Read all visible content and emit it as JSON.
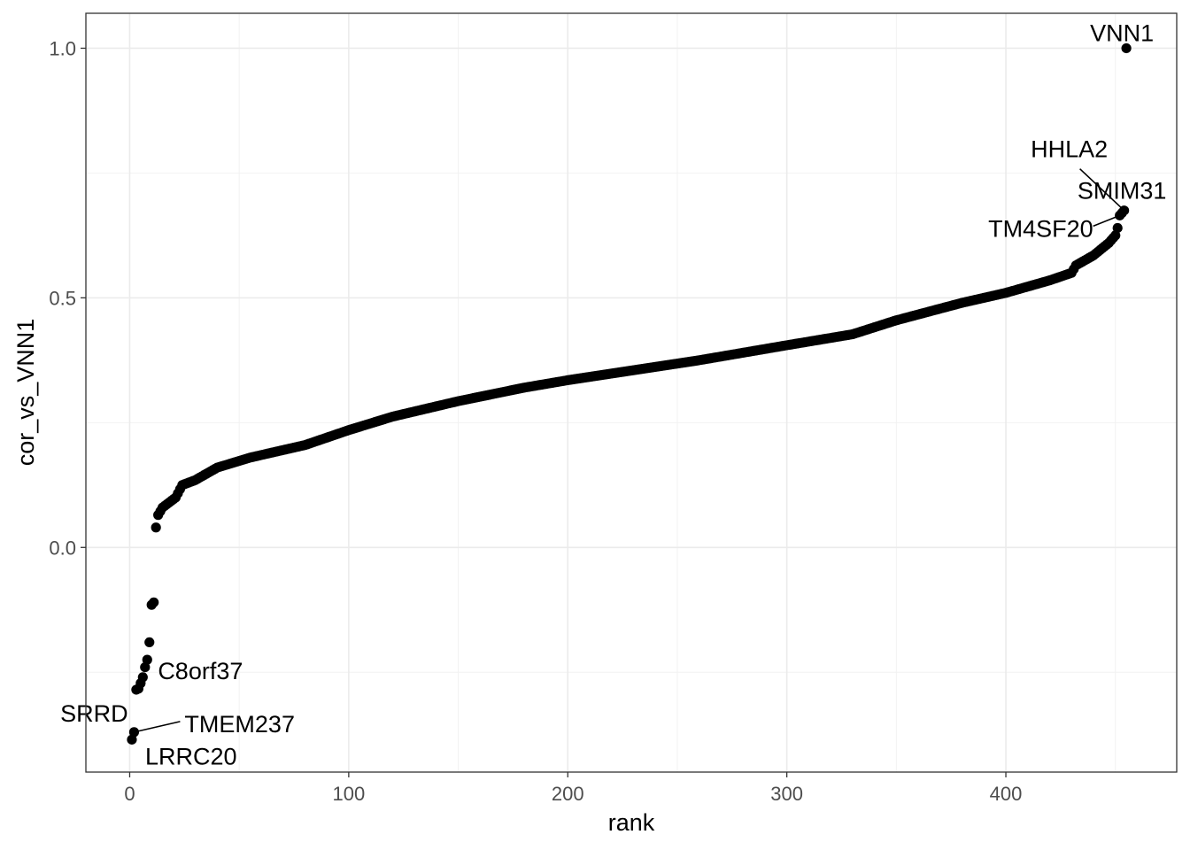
{
  "chart_data": {
    "type": "scatter",
    "title": "",
    "xlabel": "rank",
    "ylabel": "cor_vs_VNN1",
    "xlim": [
      -20,
      478
    ],
    "ylim": [
      -0.45,
      1.07
    ],
    "x_ticks": [
      0,
      100,
      200,
      300,
      400
    ],
    "x_tick_labels": [
      "0",
      "100",
      "200",
      "300",
      "400"
    ],
    "y_ticks": [
      0.0,
      0.5,
      1.0
    ],
    "y_tick_labels": [
      "0.0",
      "0.5",
      "1.0"
    ],
    "grid": true,
    "legend": "none",
    "point_color": "#000000",
    "n_points": 455,
    "low_points": [
      {
        "x": 1,
        "y": -0.385
      },
      {
        "x": 2,
        "y": -0.37
      },
      {
        "x": 3,
        "y": -0.285
      },
      {
        "x": 4,
        "y": -0.283
      },
      {
        "x": 5,
        "y": -0.272
      },
      {
        "x": 6,
        "y": -0.26
      },
      {
        "x": 7,
        "y": -0.24
      },
      {
        "x": 8,
        "y": -0.225
      },
      {
        "x": 9,
        "y": -0.19
      },
      {
        "x": 10,
        "y": -0.115
      },
      {
        "x": 11,
        "y": -0.11
      },
      {
        "x": 12,
        "y": 0.04
      }
    ],
    "curve_knots": [
      {
        "x": 12,
        "y": 0.04
      },
      {
        "x": 13,
        "y": 0.065
      },
      {
        "x": 15,
        "y": 0.08
      },
      {
        "x": 18,
        "y": 0.09
      },
      {
        "x": 21,
        "y": 0.1
      },
      {
        "x": 24,
        "y": 0.125
      },
      {
        "x": 30,
        "y": 0.135
      },
      {
        "x": 40,
        "y": 0.16
      },
      {
        "x": 55,
        "y": 0.18
      },
      {
        "x": 80,
        "y": 0.205
      },
      {
        "x": 100,
        "y": 0.235
      },
      {
        "x": 120,
        "y": 0.262
      },
      {
        "x": 150,
        "y": 0.293
      },
      {
        "x": 180,
        "y": 0.32
      },
      {
        "x": 200,
        "y": 0.335
      },
      {
        "x": 230,
        "y": 0.355
      },
      {
        "x": 260,
        "y": 0.375
      },
      {
        "x": 300,
        "y": 0.405
      },
      {
        "x": 330,
        "y": 0.427
      },
      {
        "x": 350,
        "y": 0.455
      },
      {
        "x": 380,
        "y": 0.49
      },
      {
        "x": 400,
        "y": 0.51
      },
      {
        "x": 420,
        "y": 0.535
      },
      {
        "x": 430,
        "y": 0.55
      },
      {
        "x": 432,
        "y": 0.565
      },
      {
        "x": 440,
        "y": 0.585
      },
      {
        "x": 447,
        "y": 0.61
      },
      {
        "x": 450,
        "y": 0.625
      },
      {
        "x": 451,
        "y": 0.64
      }
    ],
    "high_points": [
      {
        "x": 452,
        "y": 0.665,
        "label": "TM4SF20"
      },
      {
        "x": 453,
        "y": 0.67,
        "label": "SMIM31"
      },
      {
        "x": 454,
        "y": 0.675,
        "label": "HHLA2"
      },
      {
        "x": 455,
        "y": 1.0,
        "label": "VNN1"
      }
    ],
    "annotations": [
      {
        "text": "VNN1",
        "x": 455,
        "y": 1.0
      },
      {
        "text": "HHLA2",
        "x": 454,
        "y": 0.675
      },
      {
        "text": "SMIM31",
        "x": 453,
        "y": 0.67
      },
      {
        "text": "TM4SF20",
        "x": 452,
        "y": 0.665
      },
      {
        "text": "C8orf37",
        "x": 6,
        "y": -0.26
      },
      {
        "text": "SRRD",
        "x": 2,
        "y": -0.37
      },
      {
        "text": "TMEM237",
        "x": 2,
        "y": -0.37
      },
      {
        "text": "LRRC20",
        "x": 1,
        "y": -0.385
      }
    ]
  }
}
